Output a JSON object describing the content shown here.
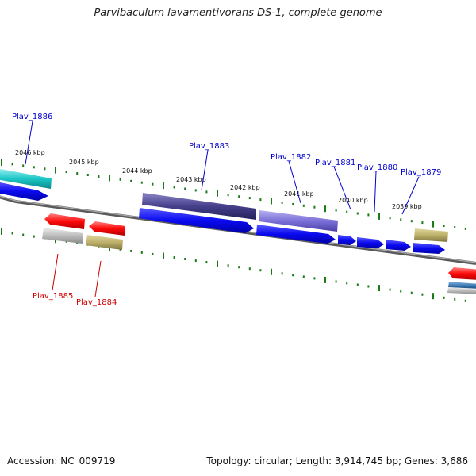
{
  "title": "Parvibaculum lavamentivorans DS-1, complete genome",
  "accession": "Accession: NC_009719",
  "topology": "Topology: circular; Length: 3,914,745 bp; Genes: 3,686",
  "colors": {
    "top_label": "#0000cc",
    "bottom_label": "#cc0000",
    "tick": "#1a7a1a",
    "backbone": "#7a7a7a"
  },
  "kbp_labels": [
    "2046 kbp",
    "2045 kbp",
    "2044 kbp",
    "2043 kbp",
    "2042 kbp",
    "2041 kbp",
    "2040 kbp",
    "2039 kbp"
  ],
  "top_genes": [
    "Plav_1886",
    "Plav_1883",
    "Plav_1882",
    "Plav_1881",
    "Plav_1880",
    "Plav_1879"
  ],
  "bottom_genes": [
    "Plav_1885",
    "Plav_1884"
  ]
}
